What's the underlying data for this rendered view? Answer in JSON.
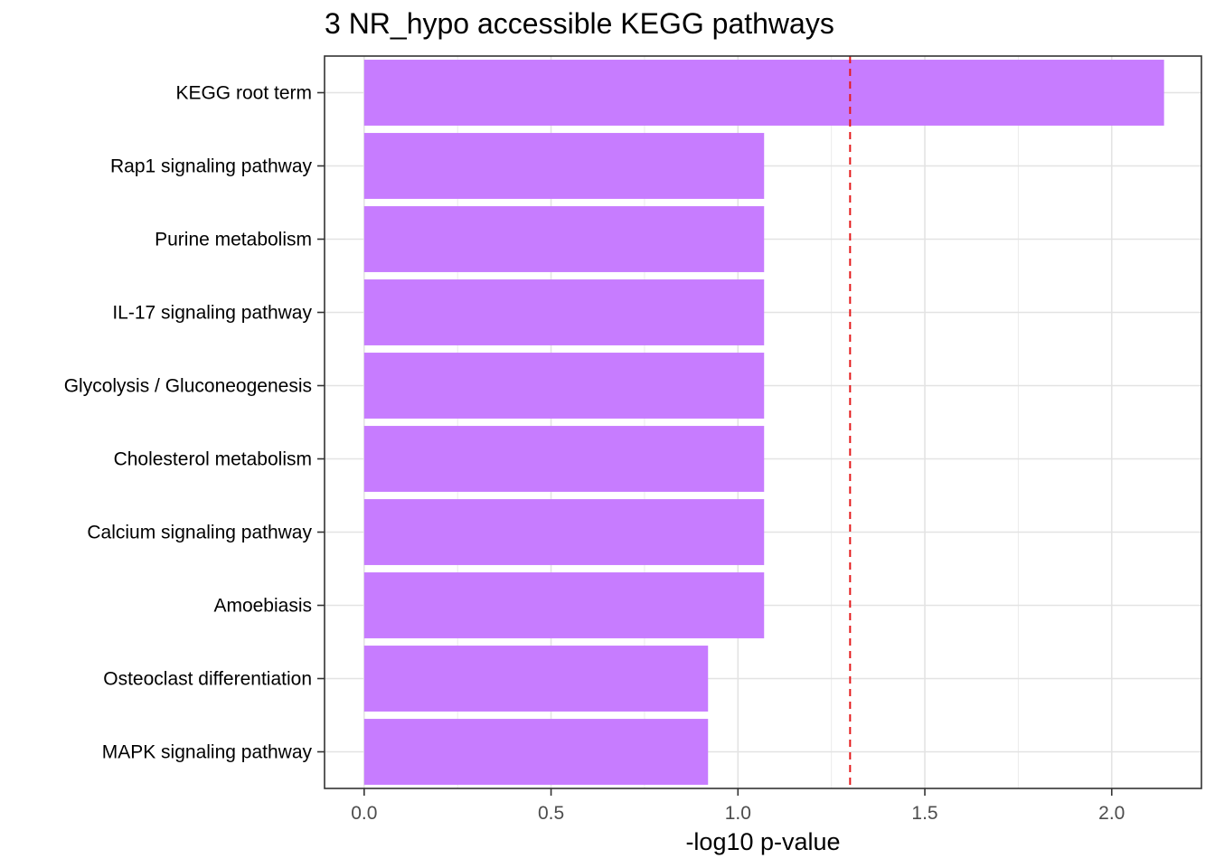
{
  "chart_data": {
    "type": "bar",
    "orientation": "horizontal",
    "title": "3 NR_hypo accessible KEGG pathways",
    "xlabel": "-log10 p-value",
    "ylabel": "",
    "categories": [
      "KEGG root term",
      "Rap1 signaling pathway",
      "Purine metabolism",
      "IL-17 signaling pathway",
      "Glycolysis / Gluconeogenesis",
      "Cholesterol metabolism",
      "Calcium signaling pathway",
      "Amoebiasis",
      "Osteoclast differentiation",
      "MAPK signaling pathway"
    ],
    "values": [
      2.14,
      1.07,
      1.07,
      1.07,
      1.07,
      1.07,
      1.07,
      1.07,
      0.92,
      0.92
    ],
    "xlim": [
      -0.106,
      2.24
    ],
    "xticks": [
      0.0,
      0.5,
      1.0,
      1.5,
      2.0
    ],
    "xtick_labels": [
      "0.0",
      "0.5",
      "1.0",
      "1.5",
      "2.0"
    ],
    "reference_line": {
      "x": 1.3,
      "style": "dashed",
      "color": "#e41a1c"
    },
    "bar_color": "#c77cff",
    "grid": true
  }
}
